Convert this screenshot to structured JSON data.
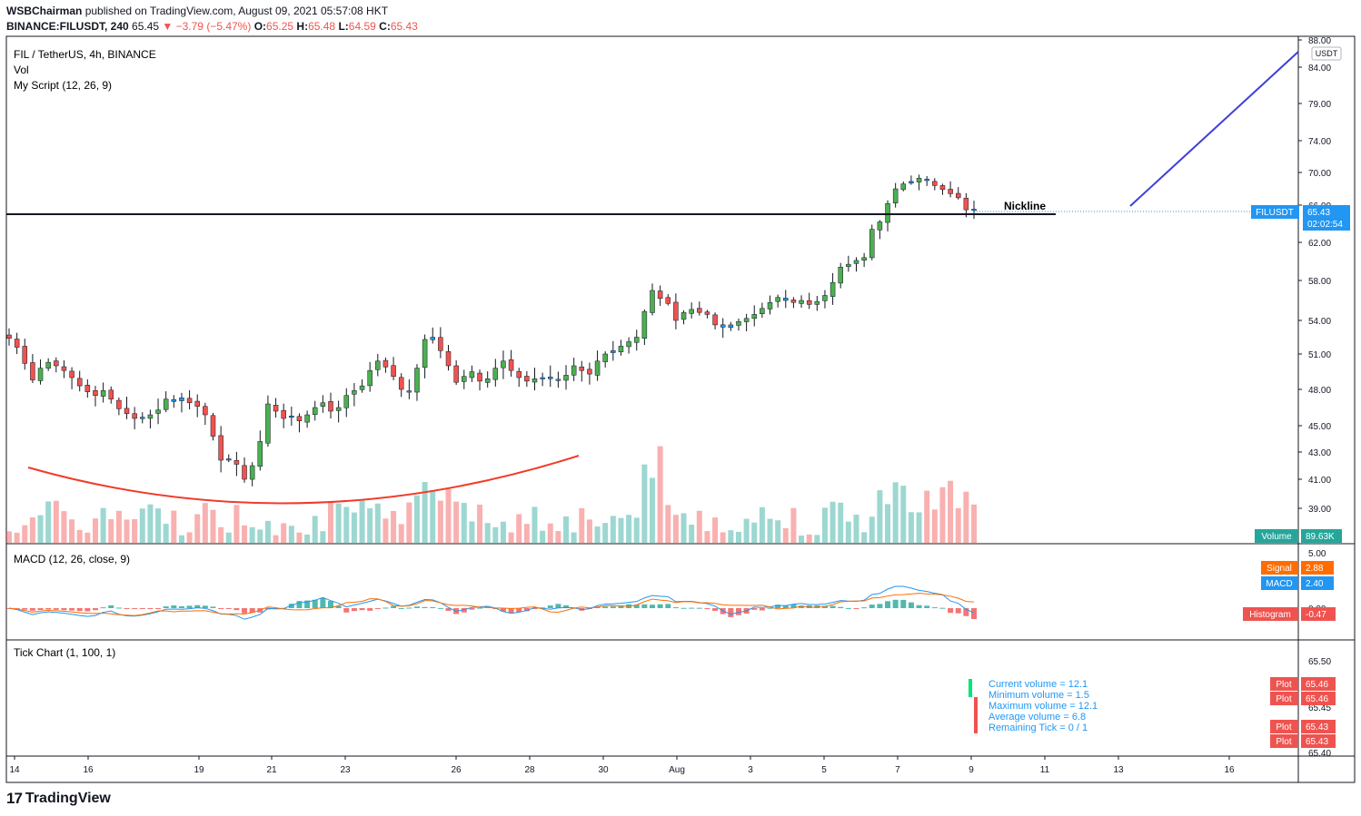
{
  "header": {
    "author": "WSBChairman",
    "published_text": "published on TradingView.com, August 09, 2021 05:57:08 HKT",
    "symbol_line": "BINANCE:FILUSDT, 240",
    "last": "65.45",
    "change": "▼ −3.79 (−5.47%)",
    "o_label": "O:",
    "o": "65.25",
    "h_label": "H:",
    "h": "65.48",
    "l_label": "L:",
    "l": "64.59",
    "c_label": "C:",
    "c": "65.43"
  },
  "legend": {
    "title": "FIL / TetherUS, 4h, BINANCE",
    "vol": "Vol",
    "script": "My Script (12, 26, 9)",
    "macd": "MACD (12, 26, close, 9)",
    "tick": "Tick Chart (1, 100, 1)"
  },
  "annotations": {
    "neckline_label": "Nickline"
  },
  "axis": {
    "currency": "USDT",
    "price_ticks": [
      "88.00",
      "84.00",
      "79.00",
      "74.00",
      "70.00",
      "66.00",
      "62.00",
      "58.00",
      "54.00",
      "51.00",
      "48.00",
      "45.00",
      "43.00",
      "41.00",
      "39.00"
    ],
    "macd_ticks": [
      "5.00",
      "0.00"
    ],
    "tick_ticks": [
      "65.50",
      "65.45",
      "65.40"
    ],
    "time_ticks": [
      "14",
      "16",
      "19",
      "21",
      "23",
      "26",
      "28",
      "30",
      "Aug",
      "3",
      "5",
      "7",
      "9",
      "11",
      "13",
      "16"
    ]
  },
  "badges": {
    "symbol": "FILUSDT",
    "price": "65.43",
    "countdown": "02:02:54",
    "volume_label": "Volume",
    "volume_value": "89.63K",
    "signal_label": "Signal",
    "signal_value": "2.88",
    "macd_label": "MACD",
    "macd_value": "2.40",
    "hist_label": "Histogram",
    "hist_value": "-0.47",
    "plot_label": "Plot",
    "plot_values": [
      "65.46",
      "65.46",
      "65.43",
      "65.43"
    ]
  },
  "tick_info": [
    "Current volume = 12.1",
    "Minimum volume = 1.5",
    "Maximum volume = 12.1",
    "Average volume = 6.8",
    "Remaining Tick = 0 / 1"
  ],
  "colors": {
    "up": "#26a69a",
    "down": "#ef5350",
    "candle_up": "#4caf50",
    "candle_flat": "#2196f3",
    "macd": "#2196f3",
    "signal": "#ff6d00",
    "arc": "#f23a2a",
    "trend": "#3f3fd9"
  },
  "footer": {
    "brand": "TradingView"
  },
  "chart_data": {
    "type": "candlestick",
    "title": "FIL / TetherUS, 4h, BINANCE",
    "x_range": [
      "Jul 14",
      "Jul 17"
    ],
    "ylim": [
      38,
      88
    ],
    "last_price": 65.43,
    "neckline": 65.5,
    "seed_closes": [
      52.4,
      51.6,
      50.2,
      48.8,
      49.8,
      50.3,
      50.0,
      49.6,
      49.0,
      48.3,
      47.8,
      47.5,
      47.9,
      47.2,
      46.4,
      46.0,
      45.6,
      45.7,
      45.9,
      46.3,
      47.2,
      47.0,
      47.3,
      46.9,
      46.6,
      45.9,
      44.2,
      42.4,
      42.5,
      42.1,
      41.0,
      42.0,
      43.8,
      46.8,
      46.2,
      45.6,
      45.8,
      45.4,
      45.9,
      46.5,
      46.9,
      46.2,
      46.5,
      47.5,
      47.9,
      48.3,
      49.6,
      50.4,
      49.9,
      49.1,
      48.0,
      47.8,
      49.8,
      52.3,
      52.5,
      51.3,
      50.0,
      48.6,
      49.1,
      49.5,
      48.7,
      48.9,
      49.8,
      50.4,
      49.6,
      49.0,
      48.7,
      48.9,
      49.0,
      48.9,
      48.8,
      49.2,
      50.0,
      49.6,
      49.3,
      50.4,
      51.0,
      51.3,
      51.7,
      52.1,
      52.5,
      54.9,
      57.0,
      56.2,
      55.7,
      54.0,
      54.8,
      55.1,
      54.8,
      54.6,
      53.6,
      53.4,
      53.6,
      53.9,
      54.2,
      54.6,
      55.2,
      55.8,
      56.3,
      56.0,
      55.8,
      56.0,
      55.6,
      55.9,
      56.5,
      57.8,
      59.4,
      59.7,
      60.1,
      60.4,
      63.4,
      64.2,
      66.2,
      68.0,
      68.6,
      68.9,
      69.3,
      69.0,
      68.4,
      67.9,
      67.4,
      66.9,
      65.5,
      65.43
    ],
    "volume": {
      "max_label": "89.63K"
    },
    "macd": {
      "fast": 12,
      "slow": 26,
      "signal": 9,
      "macd_last": 2.4,
      "signal_last": 2.88,
      "hist_last": -0.47
    },
    "tick_chart": {
      "current": 12.1,
      "min": 1.5,
      "max": 12.1,
      "avg": 6.8
    }
  }
}
